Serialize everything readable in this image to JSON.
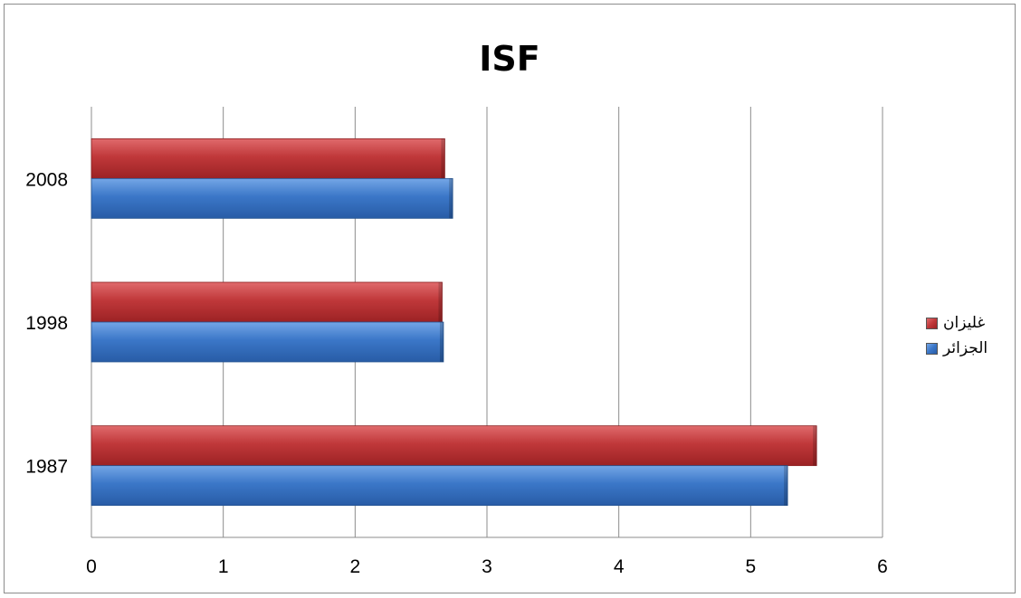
{
  "chart_data": {
    "type": "bar",
    "orientation": "horizontal",
    "title": "ISF",
    "categories": [
      "1987",
      "1998",
      "2008"
    ],
    "series": [
      {
        "name": "غليزان",
        "color": "#c0383a",
        "values": [
          5.5,
          2.66,
          2.68
        ]
      },
      {
        "name": "الجزائر",
        "color": "#3b77c8",
        "values": [
          5.28,
          2.67,
          2.74
        ]
      }
    ],
    "xlim": [
      0,
      6
    ],
    "xticks": [
      "0",
      "1",
      "2",
      "3",
      "4",
      "5",
      "6"
    ],
    "grid": true,
    "legend_position": "right"
  }
}
